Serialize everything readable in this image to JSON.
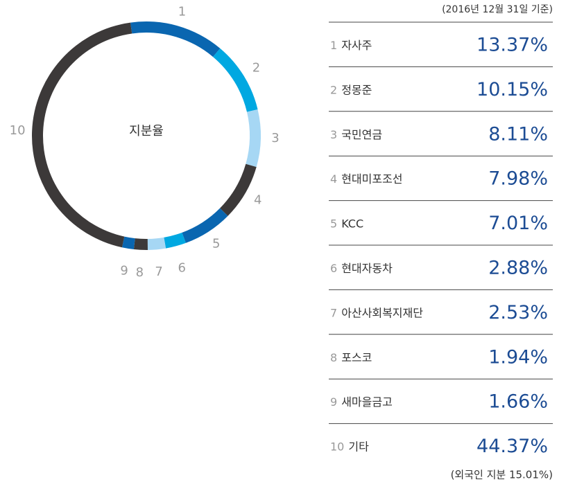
{
  "chart_data": {
    "type": "donut",
    "center_label": "지분율",
    "note": "(2016년 12월 31일 기준)",
    "footnote": "(외국인 지분 15.01%)",
    "labels": [
      "1",
      "2",
      "3",
      "4",
      "5",
      "6",
      "7",
      "8",
      "9",
      "10"
    ],
    "categories": [
      "자사주",
      "정몽준",
      "국민연금",
      "현대미포조선",
      "KCC",
      "현대자동차",
      "아산사회복지재단",
      "포스코",
      "새마을금고",
      "기타"
    ],
    "values": [
      13.37,
      10.15,
      8.11,
      7.98,
      7.01,
      2.88,
      2.53,
      1.94,
      1.66,
      44.37
    ],
    "value_labels": [
      "13.37%",
      "10.15%",
      "8.11%",
      "7.98%",
      "7.01%",
      "2.88%",
      "2.53%",
      "1.94%",
      "1.66%",
      "44.37%"
    ],
    "colors": [
      "#0a66b0",
      "#00a8e1",
      "#a6d7f4",
      "#3c3939",
      "#0a66b0",
      "#00a8e1",
      "#a6d7f4",
      "#3c3939",
      "#0a66b0",
      "#3c3939"
    ]
  }
}
